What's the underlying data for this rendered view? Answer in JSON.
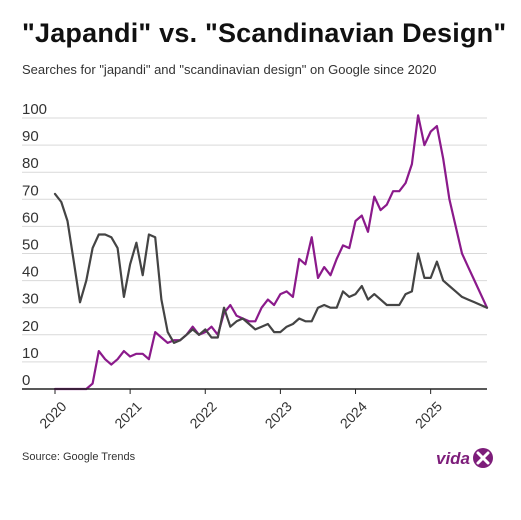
{
  "header": {
    "title": "\"Japandi\" vs. \"Scandinavian Design\"",
    "subtitle": "Searches for \"japandi\" and \"scandinavian design\" on Google since 2020"
  },
  "footer": {
    "source": "Source: Google Trends",
    "logo_text": "vidaXL"
  },
  "colors": {
    "japandi": "#8b1a8b",
    "scandinavian": "#444444",
    "grid": "#d9d9d9",
    "axis": "#222222",
    "logo": "#7d1d7a"
  },
  "chart_data": {
    "type": "line",
    "title": "\"Japandi\" vs. \"Scandinavian Design\"",
    "subtitle": "Searches for \"japandi\" and \"scandinavian design\" on Google since 2020",
    "ylim": [
      0,
      100
    ],
    "yticks": [
      0,
      10,
      20,
      30,
      40,
      50,
      60,
      70,
      80,
      90,
      100
    ],
    "xlim": [
      "2020-01",
      "2025-10"
    ],
    "xtick_labels": [
      "2020",
      "2021",
      "2022",
      "2023",
      "2024",
      "2025"
    ],
    "xtick_dates": [
      "2020-01",
      "2021-01",
      "2022-01",
      "2023-01",
      "2024-01",
      "2025-01"
    ],
    "grid": true,
    "legend": "none",
    "x": [
      "2020-01",
      "2020-02",
      "2020-03",
      "2020-04",
      "2020-05",
      "2020-06",
      "2020-07",
      "2020-08",
      "2020-09",
      "2020-10",
      "2020-11",
      "2020-12",
      "2021-01",
      "2021-02",
      "2021-03",
      "2021-04",
      "2021-05",
      "2021-06",
      "2021-07",
      "2021-08",
      "2021-09",
      "2021-10",
      "2021-11",
      "2021-12",
      "2022-01",
      "2022-02",
      "2022-03",
      "2022-04",
      "2022-05",
      "2022-06",
      "2022-07",
      "2022-08",
      "2022-09",
      "2022-10",
      "2022-11",
      "2022-12",
      "2023-01",
      "2023-02",
      "2023-03",
      "2023-04",
      "2023-05",
      "2023-06",
      "2023-07",
      "2023-08",
      "2023-09",
      "2023-10",
      "2023-11",
      "2023-12",
      "2024-01",
      "2024-02",
      "2024-03",
      "2024-04",
      "2024-05",
      "2024-06",
      "2024-07",
      "2024-08",
      "2024-09",
      "2024-10",
      "2024-11",
      "2024-12",
      "2025-01",
      "2025-02",
      "2025-03",
      "2025-04",
      "2025-05",
      "2025-06",
      "2025-07",
      "2025-08",
      "2025-09",
      "2025-10"
    ],
    "series": [
      {
        "key": "japandi",
        "values": [
          0,
          0,
          0,
          0,
          0,
          0,
          2,
          14,
          11,
          9,
          11,
          14,
          12,
          13,
          13,
          11,
          21,
          19,
          17,
          18,
          18,
          20,
          23,
          20,
          21,
          23,
          20,
          28,
          31,
          27,
          26,
          25,
          25,
          30,
          33,
          31,
          35,
          36,
          34,
          48,
          46,
          56,
          41,
          45,
          42,
          48,
          53,
          52,
          62,
          64,
          58,
          71,
          66,
          68,
          73,
          73,
          76,
          83,
          101,
          90,
          95,
          97,
          85,
          70,
          60,
          50,
          45,
          40,
          35,
          30
        ]
      },
      {
        "key": "scandinavian",
        "values": [
          72,
          69,
          62,
          47,
          32,
          40,
          52,
          57,
          57,
          56,
          52,
          34,
          46,
          54,
          42,
          57,
          56,
          33,
          21,
          17,
          18,
          20,
          22,
          20,
          22,
          19,
          19,
          30,
          23,
          25,
          26,
          24,
          22,
          23,
          24,
          21,
          21,
          23,
          24,
          26,
          25,
          25,
          30,
          31,
          30,
          30,
          36,
          34,
          35,
          38,
          33,
          35,
          33,
          31,
          31,
          31,
          35,
          36,
          50,
          41,
          41,
          47,
          40,
          38,
          36,
          34,
          33,
          32,
          31,
          30
        ]
      }
    ]
  }
}
